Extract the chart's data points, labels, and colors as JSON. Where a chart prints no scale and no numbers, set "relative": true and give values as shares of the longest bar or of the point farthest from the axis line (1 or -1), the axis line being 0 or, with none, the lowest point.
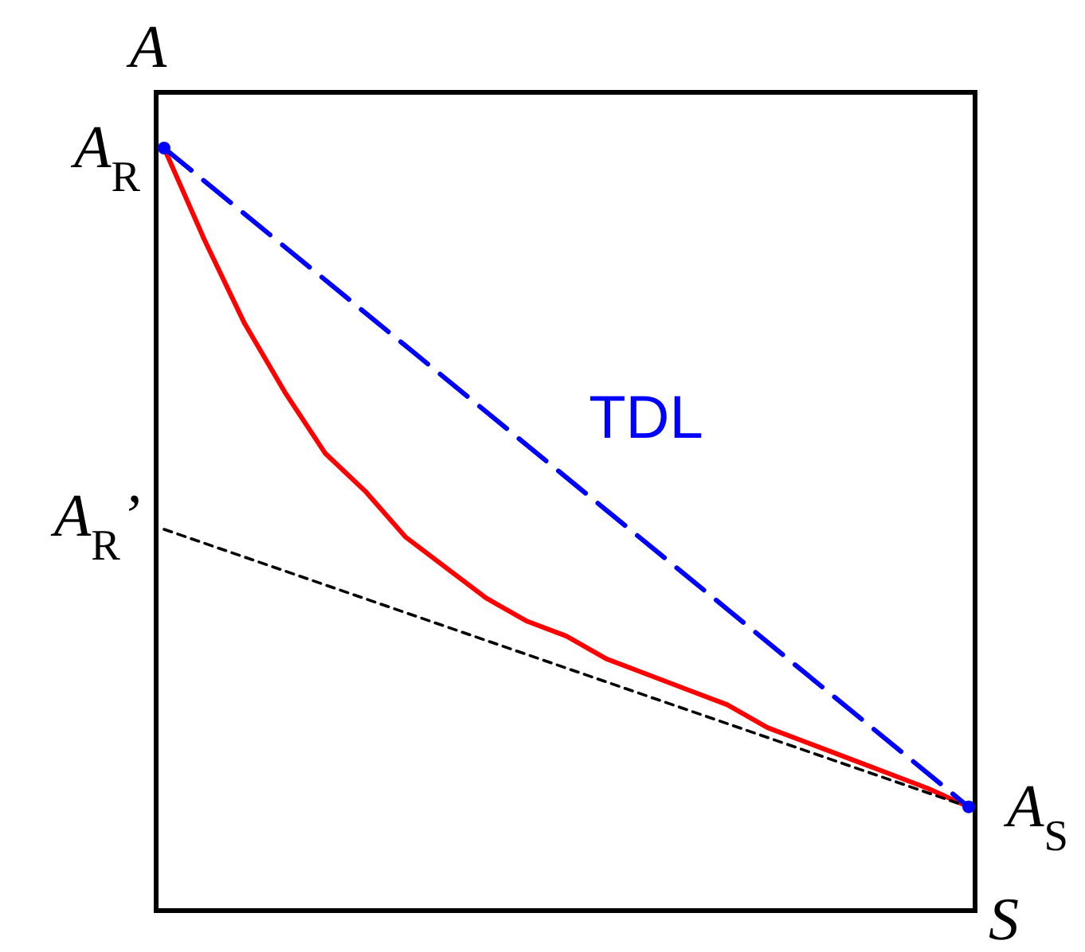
{
  "chart_data": {
    "type": "line",
    "relative": true,
    "xlabel": "S",
    "ylabel": "A",
    "tick_labels": false,
    "grid": false,
    "categories": [
      null,
      null,
      null,
      null,
      null,
      null,
      null,
      null,
      null,
      null,
      null,
      null,
      null,
      null,
      null,
      null,
      null,
      null,
      null,
      null,
      null
    ],
    "series": [
      {
        "color": "#ff0000",
        "line_style": "solid",
        "values": [
          1,
          0.88,
          0.77,
          0.68,
          0.6,
          0.55,
          0.49,
          0.45,
          0.41,
          0.38,
          0.36,
          0.33,
          0.31,
          0.29,
          0.27,
          0.24,
          0.22,
          0.2,
          0.18,
          0.16,
          0.136
        ]
      },
      {
        "name": "TDL",
        "color": "#0000ff",
        "line_style": "dashed",
        "marker": "circle",
        "values": [
          1,
          null,
          null,
          null,
          null,
          null,
          null,
          null,
          null,
          null,
          null,
          null,
          null,
          null,
          null,
          null,
          null,
          null,
          null,
          null,
          0.136
        ]
      },
      {
        "color": "#000000",
        "line_style": "dotted",
        "values": [
          0.5,
          null,
          null,
          null,
          null,
          null,
          null,
          null,
          null,
          null,
          null,
          null,
          null,
          null,
          null,
          null,
          null,
          null,
          null,
          null,
          0.136
        ]
      }
    ],
    "annotations": [
      "A$_{R}$",
      "A$_{R}$’",
      "A$_{S}$"
    ]
  }
}
